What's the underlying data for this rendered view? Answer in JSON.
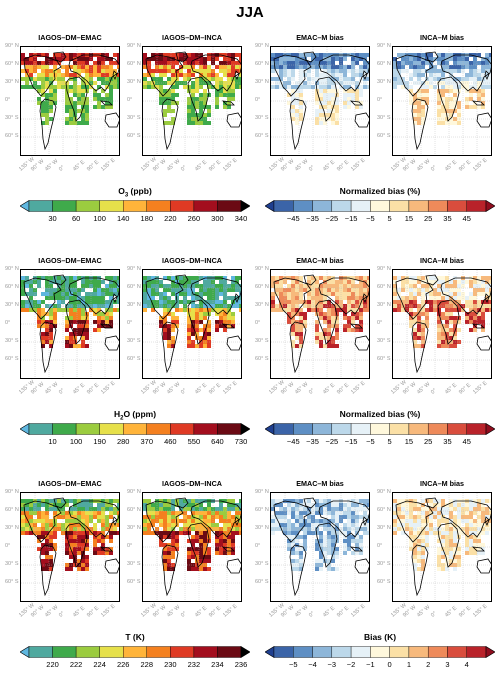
{
  "figure_title": "JJA",
  "panel_titles": [
    "IAGOS–DM–EMAC",
    "IAGOS–DM–INCA",
    "EMAC–M bias",
    "INCA–M bias"
  ],
  "latitude_labels": [
    "90° N",
    "60° N",
    "30° N",
    "0°",
    "30° S",
    "60° S"
  ],
  "longitude_labels": [
    "135° W",
    "90° W",
    "45° W",
    "0°",
    "45° E",
    "90° E",
    "135° E"
  ],
  "rows": [
    {
      "variable": "O3",
      "absolute_colorbar": {
        "label_main": "O",
        "label_sub": "3",
        "label_rest": " (ppb)",
        "ticks": [
          "30",
          "60",
          "100",
          "140",
          "180",
          "220",
          "260",
          "300",
          "340"
        ],
        "colors": [
          "#5fb7df",
          "#4fa99f",
          "#3faa4b",
          "#9bcc3f",
          "#e6e04a",
          "#ffb43a",
          "#f4801f",
          "#df3a24",
          "#a30e1e",
          "#6b0a14",
          "#000000"
        ]
      },
      "bias_colorbar": {
        "label": "Normalized bias (%)",
        "ticks": [
          "−45",
          "−35",
          "−25",
          "−15",
          "−5",
          "5",
          "15",
          "25",
          "35",
          "45"
        ],
        "colors": [
          "#1f3f8f",
          "#3b64a8",
          "#5e8fc4",
          "#8db6d9",
          "#bcd8ea",
          "#e6f1f7",
          "#fff8dc",
          "#fbe0a6",
          "#f7b97c",
          "#ee8a5a",
          "#d94d3d",
          "#b9222a",
          "#8f0d1e"
        ]
      }
    },
    {
      "variable": "H2O",
      "absolute_colorbar": {
        "label_main": "H",
        "label_sub": "2",
        "label_rest": "O (ppm)",
        "ticks": [
          "10",
          "100",
          "190",
          "280",
          "370",
          "460",
          "550",
          "640",
          "730"
        ],
        "colors": [
          "#5fb7df",
          "#4fa99f",
          "#3faa4b",
          "#9bcc3f",
          "#e6e04a",
          "#ffb43a",
          "#f4801f",
          "#df3a24",
          "#a30e1e",
          "#6b0a14",
          "#000000"
        ]
      },
      "bias_colorbar": {
        "label": "Normalized bias (%)",
        "ticks": [
          "−45",
          "−35",
          "−25",
          "−15",
          "−5",
          "5",
          "15",
          "25",
          "35",
          "45"
        ],
        "colors": [
          "#1f3f8f",
          "#3b64a8",
          "#5e8fc4",
          "#8db6d9",
          "#bcd8ea",
          "#e6f1f7",
          "#fff8dc",
          "#fbe0a6",
          "#f7b97c",
          "#ee8a5a",
          "#d94d3d",
          "#b9222a",
          "#8f0d1e"
        ]
      }
    },
    {
      "variable": "T",
      "absolute_colorbar": {
        "label_main": "T (K)",
        "label_sub": "",
        "label_rest": "",
        "ticks": [
          "220",
          "222",
          "224",
          "226",
          "228",
          "230",
          "232",
          "234",
          "236"
        ],
        "colors": [
          "#5fb7df",
          "#4fa99f",
          "#3faa4b",
          "#9bcc3f",
          "#e6e04a",
          "#ffb43a",
          "#f4801f",
          "#df3a24",
          "#a30e1e",
          "#6b0a14",
          "#000000"
        ]
      },
      "bias_colorbar": {
        "label": "Bias (K)",
        "ticks": [
          "−5",
          "−4",
          "−3",
          "−2",
          "−1",
          "0",
          "1",
          "2",
          "3",
          "4"
        ],
        "colors": [
          "#1f3f8f",
          "#3b64a8",
          "#5e8fc4",
          "#8db6d9",
          "#bcd8ea",
          "#e6f1f7",
          "#fff8dc",
          "#fbe0a6",
          "#f7b97c",
          "#ee8a5a",
          "#d94d3d",
          "#b9222a",
          "#8f0d1e"
        ]
      }
    }
  ]
}
